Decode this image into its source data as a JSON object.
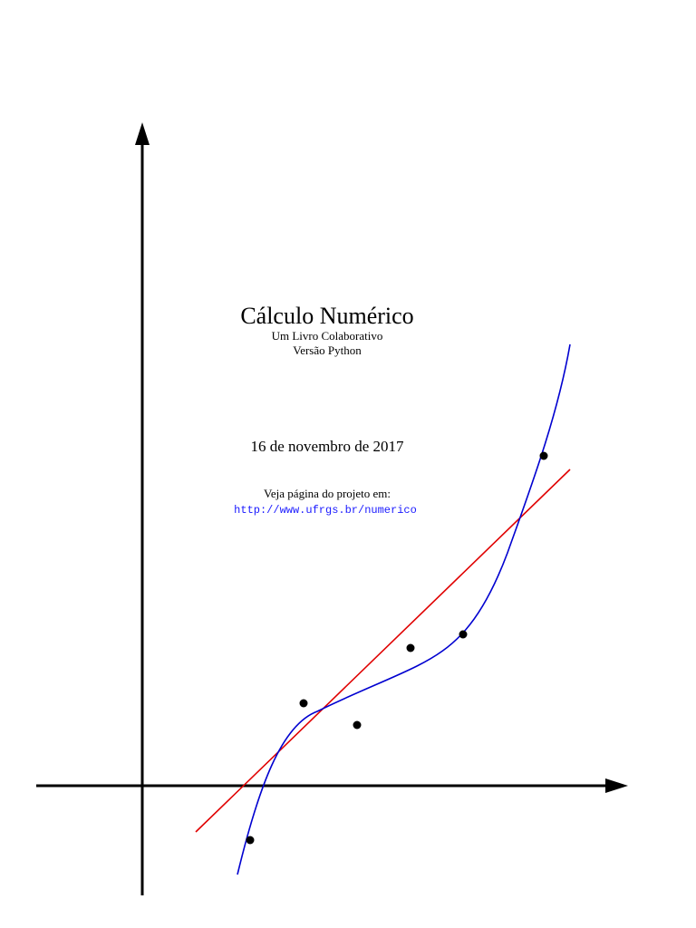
{
  "title": "Cálculo Numérico",
  "subtitle": [
    "Um Livro Colaborativo",
    "Versão Python"
  ],
  "date": "16 de novembro de 2017",
  "link_intro": "Veja página do projeto em:",
  "link": "http://www.ufrgs.br/numerico"
}
